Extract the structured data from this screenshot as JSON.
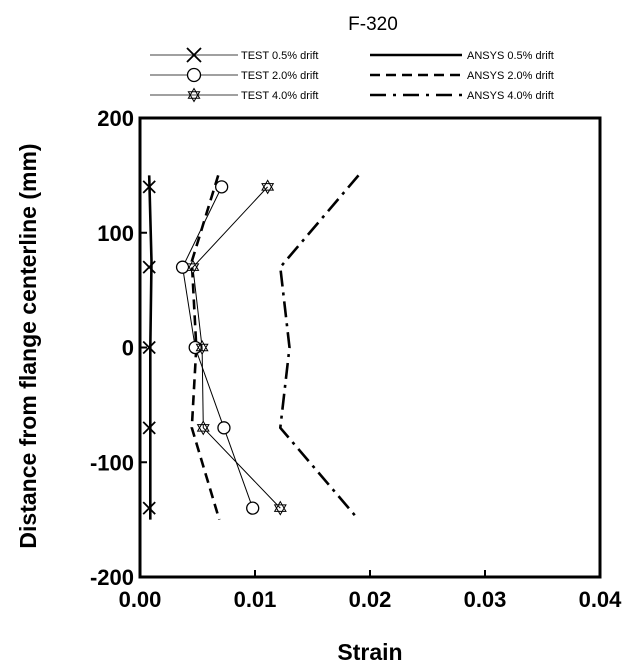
{
  "chart_data": {
    "type": "line",
    "title": "F-320",
    "xlabel": "Strain",
    "ylabel": "Distance from flange centerline (mm)",
    "xlim": [
      0,
      0.04
    ],
    "ylim": [
      -200,
      200
    ],
    "x_ticks": [
      "0.00",
      "0.01",
      "0.02",
      "0.03",
      "0.04"
    ],
    "y_ticks": [
      "-200",
      "-100",
      "0",
      "100",
      "200"
    ],
    "legend_position": "top",
    "series": [
      {
        "name": "TEST 0.5% drift",
        "kind": "test",
        "marker": "x",
        "points": [
          [
            0.0008,
            140
          ],
          [
            0.0008,
            70
          ],
          [
            0.0008,
            0
          ],
          [
            0.0008,
            -70
          ],
          [
            0.0008,
            -140
          ]
        ]
      },
      {
        "name": "TEST 2.0% drift",
        "kind": "test",
        "marker": "circle",
        "points": [
          [
            0.0071,
            140
          ],
          [
            0.0037,
            70
          ],
          [
            0.0048,
            0
          ],
          [
            0.0073,
            -70
          ],
          [
            0.0098,
            -140
          ]
        ]
      },
      {
        "name": "TEST 4.0% drift",
        "kind": "test",
        "marker": "star",
        "points": [
          [
            0.0111,
            140
          ],
          [
            0.0046,
            70
          ],
          [
            0.0054,
            0
          ],
          [
            0.0055,
            -70
          ],
          [
            0.0122,
            -140
          ]
        ]
      },
      {
        "name": "ANSYS 0.5% drift",
        "kind": "ansys",
        "dash": "solid",
        "points": [
          [
            0.0008,
            150
          ],
          [
            0.001,
            75
          ],
          [
            0.0009,
            0
          ],
          [
            0.0009,
            -75
          ],
          [
            0.0009,
            -150
          ]
        ]
      },
      {
        "name": "ANSYS 2.0% drift",
        "kind": "ansys",
        "dash": "dashed",
        "points": [
          [
            0.0068,
            150
          ],
          [
            0.0045,
            75
          ],
          [
            0.0049,
            0
          ],
          [
            0.0045,
            -70
          ],
          [
            0.0069,
            -150
          ]
        ]
      },
      {
        "name": "ANSYS 4.0% drift",
        "kind": "ansys",
        "dash": "dashdot",
        "points": [
          [
            0.019,
            150
          ],
          [
            0.0122,
            70
          ],
          [
            0.013,
            0
          ],
          [
            0.0122,
            -70
          ],
          [
            0.019,
            -150
          ]
        ]
      }
    ]
  }
}
